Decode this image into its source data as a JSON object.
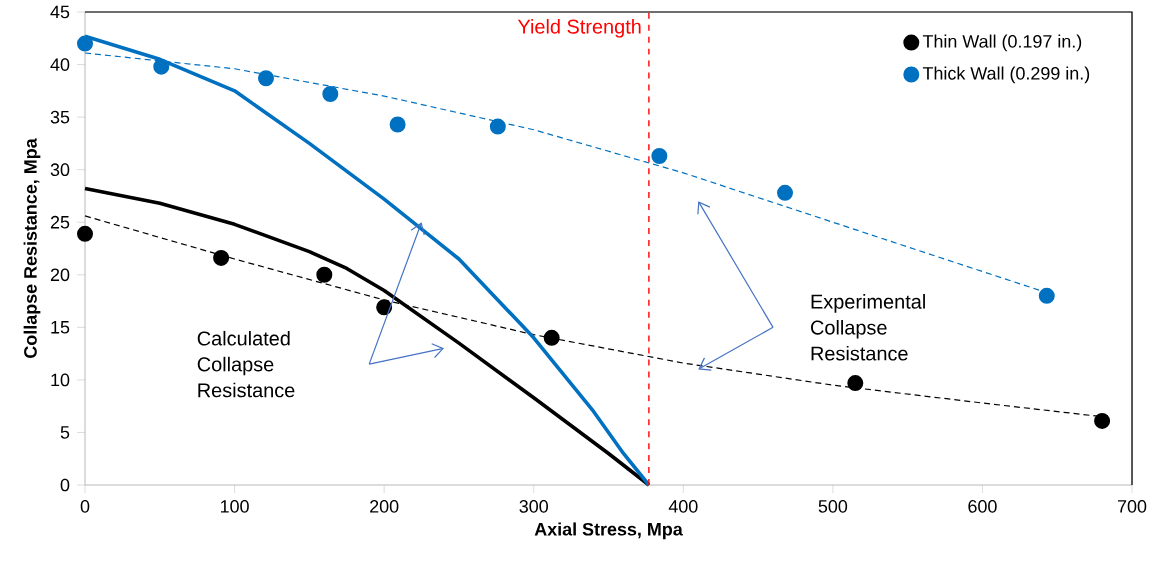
{
  "chart_data": {
    "type": "scatter",
    "xlabel": "Axial Stress, Mpa",
    "ylabel": "Collapse Resistance, Mpa",
    "xlim": [
      0,
      700
    ],
    "ylim": [
      0,
      45
    ],
    "xticks": [
      0,
      100,
      200,
      300,
      400,
      500,
      600,
      700
    ],
    "yticks": [
      0,
      5,
      10,
      15,
      20,
      25,
      30,
      35,
      40,
      45
    ],
    "grid": false,
    "legend": "top right",
    "marker": "circle",
    "series": [
      {
        "name": "Thin Wall (0.197 in.)",
        "color": "#000000",
        "x": [
          0,
          91,
          160,
          200,
          312,
          515,
          680
        ],
        "values": [
          23.9,
          21.6,
          20.0,
          16.9,
          14.0,
          9.7,
          6.1
        ]
      },
      {
        "name": "Thick Wall (0.299 in.)",
        "color": "#0070c0",
        "x": [
          0,
          51,
          121,
          164,
          209,
          276,
          384,
          468,
          643
        ],
        "values": [
          42.0,
          39.8,
          38.7,
          37.2,
          34.3,
          34.1,
          31.3,
          27.8,
          18.0
        ]
      },
      {
        "type": "line",
        "line_style": "dashed",
        "marker": "none",
        "color": "#000000",
        "x": [
          0,
          100,
          200,
          300,
          400,
          500,
          600,
          680
        ],
        "values": [
          25.6,
          21.5,
          17.6,
          14.3,
          11.6,
          9.5,
          7.8,
          6.5
        ]
      },
      {
        "type": "line",
        "line_style": "dashed",
        "marker": "none",
        "color": "#0070c0",
        "x": [
          0,
          100,
          200,
          300,
          400,
          500,
          643
        ],
        "values": [
          41.1,
          39.6,
          37.0,
          33.8,
          29.7,
          25.0,
          18.3
        ]
      },
      {
        "type": "line",
        "line_style": "solid",
        "marker": "none",
        "color": "#000000",
        "x": [
          0,
          50,
          100,
          150,
          175,
          200,
          250,
          300,
          350,
          377
        ],
        "values": [
          28.2,
          26.8,
          24.8,
          22.2,
          20.6,
          18.5,
          13.5,
          8.3,
          3.0,
          0
        ]
      },
      {
        "type": "line",
        "line_style": "solid",
        "marker": "none",
        "color": "#0070c0",
        "x": [
          0,
          50,
          100,
          150,
          200,
          250,
          300,
          340,
          360,
          377
        ],
        "values": [
          42.7,
          40.5,
          37.5,
          32.5,
          27.2,
          21.5,
          14.0,
          7.0,
          3.0,
          0
        ]
      }
    ],
    "ref_lines": [
      {
        "axis": "x",
        "value": 377,
        "label": "Yield Strength",
        "color": "#ff0000",
        "line_style": "dashed"
      }
    ],
    "annotations": [
      "Calculated Collapse Resistance",
      "Experimental Collapse Resistance"
    ]
  }
}
